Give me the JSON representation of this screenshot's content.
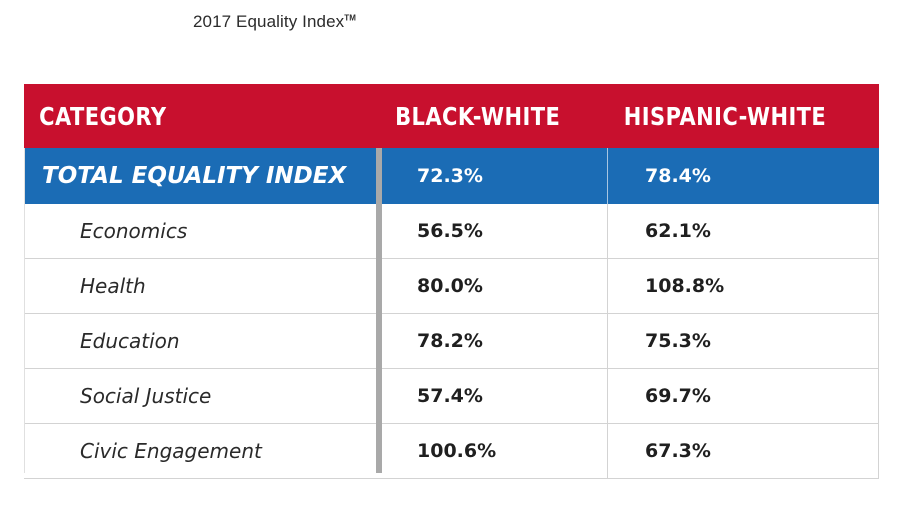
{
  "title": "2017 Equality Index",
  "title_mark": "TM",
  "colors": {
    "header_bg": "#c8102e",
    "total_bg": "#1b6cb5",
    "divider": "#a9a9a9"
  },
  "table": {
    "headers": [
      "CATEGORY",
      "BLACK-WHITE",
      "HISPANIC-WHITE"
    ],
    "total": {
      "label": "TOTAL EQUALITY INDEX",
      "black_white": "72.3%",
      "hispanic_white": "78.4%"
    },
    "rows": [
      {
        "category": "Economics",
        "black_white": "56.5%",
        "hispanic_white": "62.1%"
      },
      {
        "category": "Health",
        "black_white": "80.0%",
        "hispanic_white": "108.8%"
      },
      {
        "category": "Education",
        "black_white": "78.2%",
        "hispanic_white": "75.3%"
      },
      {
        "category": "Social Justice",
        "black_white": "57.4%",
        "hispanic_white": "69.7%"
      },
      {
        "category": "Civic Engagement",
        "black_white": "100.6%",
        "hispanic_white": "67.3%"
      }
    ]
  }
}
